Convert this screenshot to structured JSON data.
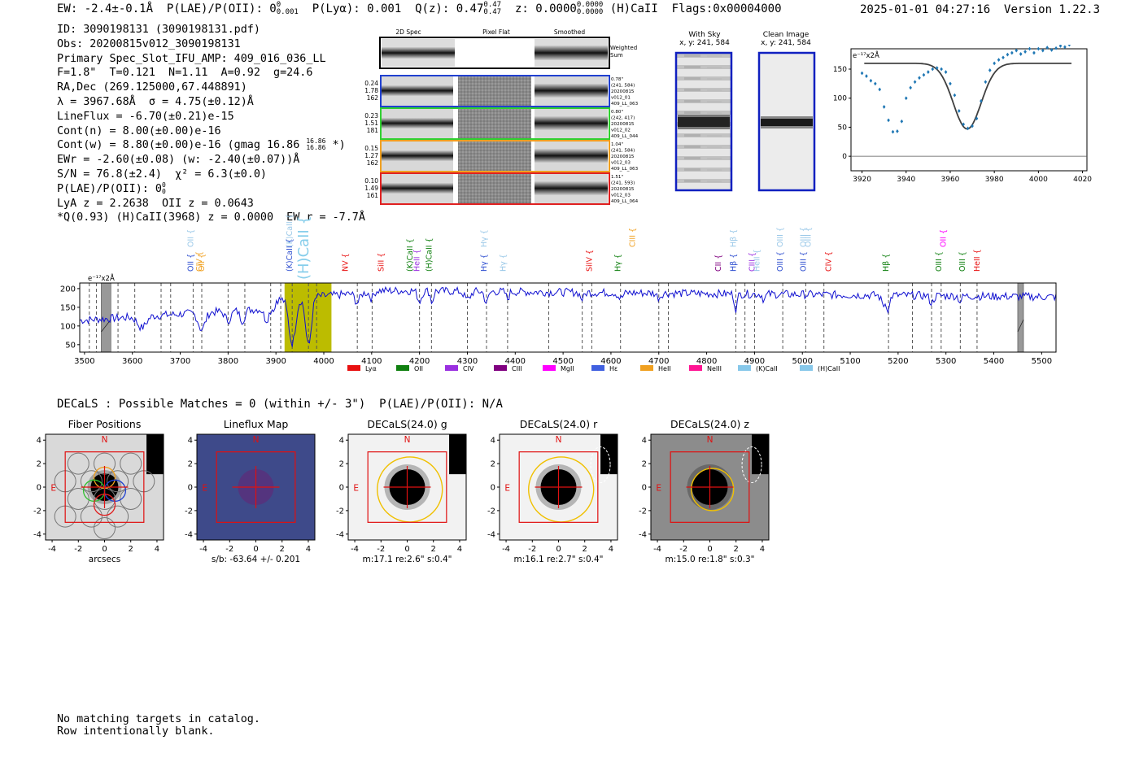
{
  "header": {
    "ew": "EW: -2.4±-0.1Å",
    "plae": "P(LAE)/P(OII): 0",
    "plae_sup": "0",
    "plae_sub": "0.001",
    "plya": "P(Lyα): 0.001",
    "qz": "Q(z): 0.47",
    "qz_sup": "0.47",
    "qz_sub": "0.47",
    "z": "z: 0.0000",
    "z_sup": "0.0000",
    "z_sub": "0.0000",
    "line": "(H)CaII",
    "flags": "Flags:0x00004000",
    "timestamp": "2025-01-01 04:27:16",
    "version": "Version 1.22.3"
  },
  "info": {
    "id": "ID: 3090198131 (3090198131.pdf)",
    "obs": "Obs: 20200815v012_3090198131",
    "primary": "Primary Spec_Slot_IFU_AMP: 409_016_036_LL",
    "fit": "F=1.8\"  T=0.121  N=1.11  A=0.92  g=24.6",
    "radec": "RA,Dec (269.125000,67.448891)",
    "lambda": "λ = 3967.68Å  σ = 4.75(±0.12)Å",
    "lineflux": "LineFlux = -6.70(±0.21)e-15",
    "contn": "Cont(n) = 8.00(±0.00)e-16",
    "contw": "Cont(w) = 8.80(±0.00)e-16 (gmag 16.86",
    "contw_sup": "16.86",
    "contw_sub": "16.86",
    "contw_end": "*)",
    "ewr": "EWr = -2.60(±0.08) (w: -2.40(±0.07))Å",
    "sn": "S/N = 76.8(±2.4)  χ² = 6.3(±0.0)",
    "plae": "P(LAE)/P(OII): 0",
    "plae_sup": "0",
    "plae_sub": "0",
    "lya": "LyA z = 2.2638  OII z = 0.0643",
    "q": "*Q(0.93) (H)CaII(3968) z = 0.0000  EW r = -7.7Å"
  },
  "spec2d": {
    "col_headers": [
      "2D Spec",
      "Pixel Flat",
      "Smoothed"
    ],
    "weighted_label": "Weighted\nSum",
    "rows": [
      {
        "nums": [
          "0.24",
          "1.78",
          "162"
        ],
        "meta": [
          "0.78\"",
          "(241, 584)",
          "20200815",
          "v012_01",
          "409_LL_063"
        ],
        "color": "#2040d0"
      },
      {
        "nums": [
          "0.23",
          "1.51",
          "181"
        ],
        "meta": [
          "0.80\"",
          "(242, 417)",
          "20200815",
          "v012_02",
          "409_LL_044"
        ],
        "color": "#30d030"
      },
      {
        "nums": [
          "0.15",
          "1.27",
          "162"
        ],
        "meta": [
          "1.04\"",
          "(241, 584)",
          "20200815",
          "v012_03",
          "409_LL_063"
        ],
        "color": "#f0a020"
      },
      {
        "nums": [
          "0.10",
          "1.49",
          "161"
        ],
        "meta": [
          "1.51\"",
          "(241, 593)",
          "20200815",
          "v012_03",
          "409_LL_064"
        ],
        "color": "#e02020"
      }
    ]
  },
  "cutouts": {
    "sky_title": "With Sky",
    "sky_coords": "x, y: 241, 584",
    "clean_title": "Clean Image",
    "clean_coords": "x, y: 241, 584"
  },
  "fit_plot": {
    "scale_label": "e⁻¹⁷x2Å",
    "x_ticks": [
      "3920",
      "3940",
      "3960",
      "3980",
      "4000",
      "4020"
    ],
    "y_ticks": [
      "0",
      "50",
      "100",
      "150"
    ]
  },
  "spectrum": {
    "scale_label": "e⁻¹⁷x2Å",
    "x_ticks": [
      "3500",
      "3600",
      "3700",
      "3800",
      "3900",
      "4000",
      "4100",
      "4200",
      "4300",
      "4400",
      "4500",
      "4600",
      "4700",
      "4800",
      "4900",
      "5000",
      "5100",
      "5200",
      "5300",
      "5400",
      "5500"
    ],
    "y_ticks": [
      "50",
      "100",
      "150",
      "200"
    ],
    "legend": [
      {
        "name": "Lyα",
        "color": "#e81010"
      },
      {
        "name": "OII",
        "color": "#108010"
      },
      {
        "name": "CIV",
        "color": "#9a30e0"
      },
      {
        "name": "CIII",
        "color": "#800080"
      },
      {
        "name": "MgII",
        "color": "#ff00ff"
      },
      {
        "name": "Hε",
        "color": "#4060e0"
      },
      {
        "name": "HeII",
        "color": "#f0a020"
      },
      {
        "name": "NeIII",
        "color": "#ff1493"
      },
      {
        "name": "(K)CaII",
        "color": "#87c8ea"
      },
      {
        "name": "(H)CaII",
        "color": "#87c8ea"
      }
    ],
    "labels": [
      {
        "t": "OII",
        "w": 3727,
        "c": "#9ac8e8",
        "row": "top"
      },
      {
        "t": "(K)CaII",
        "w": 3934,
        "c": "#9ac8e8",
        "row": "top"
      },
      {
        "t": "(H)CaII",
        "w": 3968,
        "c": "#87ceeb",
        "row": "big"
      },
      {
        "t": "Hγ",
        "w": 4340,
        "c": "#9ac8e8",
        "row": "top"
      },
      {
        "t": "CIII",
        "w": 4650,
        "c": "#f0a020",
        "row": "top"
      },
      {
        "t": "Hβ",
        "w": 4861,
        "c": "#9ac8e8",
        "row": "top"
      },
      {
        "t": "OIII",
        "w": 4959,
        "c": "#9ac8e8",
        "row": "top"
      },
      {
        "t": "OIII",
        "w": 5007,
        "c": "#9ac8e8",
        "row": "top"
      },
      {
        "t": "OIII",
        "w": 5007,
        "c": "#9ac8e8",
        "row": "top2"
      },
      {
        "t": "OII",
        "w": 5300,
        "c": "#ff00ff",
        "row": "top"
      },
      {
        "t": "OII",
        "w": 3727,
        "c": "#3050d0",
        "row": "mid"
      },
      {
        "t": "CIV",
        "w": 3745,
        "c": "#f0a020",
        "row": "mid"
      },
      {
        "t": "OII",
        "w": 3750,
        "c": "#f0a020",
        "row": "mid"
      },
      {
        "t": "(K)CaII",
        "w": 3934,
        "c": "#3050d0",
        "row": "mid"
      },
      {
        "t": "NV",
        "w": 4050,
        "c": "#e81010",
        "row": "mid"
      },
      {
        "t": "SiII",
        "w": 4125,
        "c": "#e81010",
        "row": "mid"
      },
      {
        "t": "(K)CaII",
        "w": 4185,
        "c": "#108010",
        "row": "mid"
      },
      {
        "t": "HeII",
        "w": 4200,
        "c": "#9a30e0",
        "row": "mid"
      },
      {
        "t": "(H)CaII",
        "w": 4225,
        "c": "#108010",
        "row": "mid"
      },
      {
        "t": "Hγ",
        "w": 4340,
        "c": "#3050d0",
        "row": "mid"
      },
      {
        "t": "Hγ",
        "w": 4380,
        "c": "#9ac8e8",
        "row": "mid"
      },
      {
        "t": "SiIV",
        "w": 4560,
        "c": "#e81010",
        "row": "mid"
      },
      {
        "t": "Hγ",
        "w": 4620,
        "c": "#108010",
        "row": "mid"
      },
      {
        "t": "CII",
        "w": 4830,
        "c": "#800080",
        "row": "mid"
      },
      {
        "t": "Hβ",
        "w": 4861,
        "c": "#3050d0",
        "row": "mid"
      },
      {
        "t": "CIII",
        "w": 4900,
        "c": "#9a30e0",
        "row": "mid"
      },
      {
        "t": "HeII",
        "w": 4910,
        "c": "#9ac8e8",
        "row": "mid"
      },
      {
        "t": "OIII",
        "w": 4959,
        "c": "#3050d0",
        "row": "mid"
      },
      {
        "t": "OIII",
        "w": 5007,
        "c": "#3050d0",
        "row": "mid"
      },
      {
        "t": "CIV",
        "w": 5060,
        "c": "#e81010",
        "row": "mid"
      },
      {
        "t": "Hβ",
        "w": 5180,
        "c": "#108010",
        "row": "mid"
      },
      {
        "t": "OIII",
        "w": 5290,
        "c": "#108010",
        "row": "mid"
      },
      {
        "t": "OIII",
        "w": 5340,
        "c": "#108010",
        "row": "mid"
      },
      {
        "t": "HeII",
        "w": 5370,
        "c": "#e81010",
        "row": "mid"
      }
    ]
  },
  "decals": {
    "summary": "DECaLS : Possible Matches = 0 (within +/- 3\")  P(LAE)/P(OII): N/A",
    "panels": [
      {
        "title": "Fiber Positions",
        "caption": "arcsecs"
      },
      {
        "title": "Lineflux Map",
        "caption": "s/b: -63.64 +/- 0.201"
      },
      {
        "title": "DECaLS(24.0) g",
        "caption": "m:17.1  re:2.6\"  s:0.4\""
      },
      {
        "title": "DECaLS(24.0) r",
        "caption": "m:16.1  re:2.7\"  s:0.4\""
      },
      {
        "title": "DECaLS(24.0) z",
        "caption": "m:15.0  re:1.8\"  s:0.3\""
      }
    ],
    "ticks": [
      "-4",
      "-2",
      "0",
      "2",
      "4"
    ],
    "north": "N",
    "east": "E"
  },
  "footer": {
    "line1": "No matching targets in catalog.",
    "line2": "Row intentionally blank."
  }
}
